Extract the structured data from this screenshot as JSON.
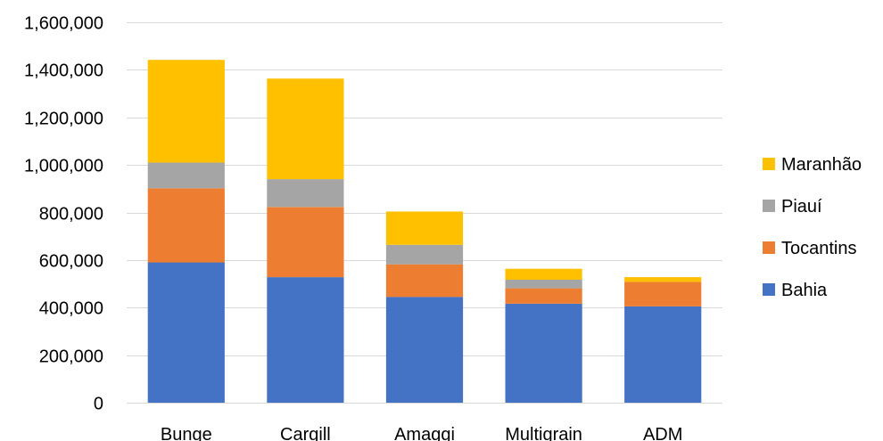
{
  "chart_data": {
    "type": "bar",
    "stacked": true,
    "title": "",
    "xlabel": "",
    "ylabel": "",
    "categories": [
      "Bunge",
      "Cargill",
      "Amaggi",
      "Multigrain",
      "ADM"
    ],
    "series": [
      {
        "name": "Bahia",
        "color": "#4472C4",
        "values": [
          590000,
          528000,
          445000,
          416000,
          405000
        ]
      },
      {
        "name": "Tocantins",
        "color": "#ED7D31",
        "values": [
          312000,
          295000,
          137000,
          65000,
          103000
        ]
      },
      {
        "name": "Piauí",
        "color": "#A5A5A5",
        "values": [
          108000,
          117000,
          82000,
          36000,
          0
        ]
      },
      {
        "name": "Maranhão",
        "color": "#FFC000",
        "values": [
          432000,
          423000,
          140000,
          46000,
          20000
        ]
      }
    ],
    "ylim": [
      0,
      1600000
    ],
    "yticks": [
      0,
      200000,
      400000,
      600000,
      800000,
      1000000,
      1200000,
      1400000,
      1600000
    ],
    "ytick_labels": [
      "0",
      "200,000",
      "400,000",
      "600,000",
      "800,000",
      "1,000,000",
      "1,200,000",
      "1,400,000",
      "1,600,000"
    ],
    "legend_order": [
      "Maranhão",
      "Piauí",
      "Tocantins",
      "Bahia"
    ],
    "legend_position": "right",
    "grid": true
  }
}
